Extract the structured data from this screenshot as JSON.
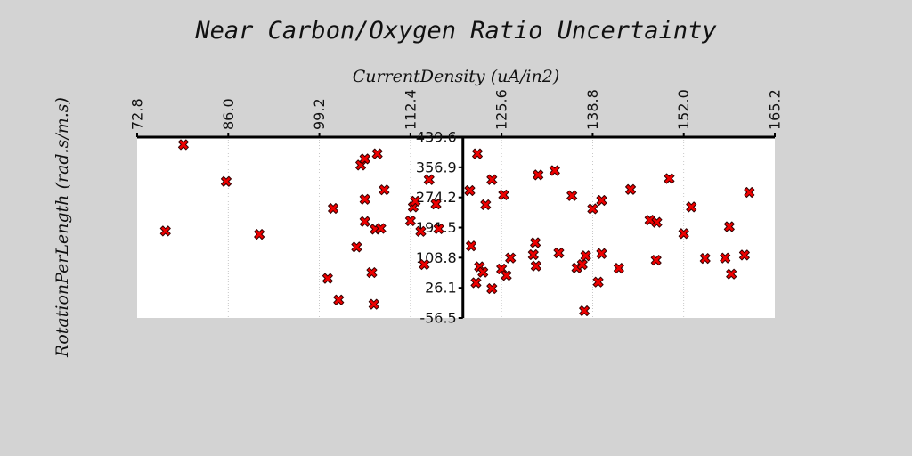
{
  "chart_data": {
    "type": "scatter",
    "title": "Near Carbon/Oxygen Ratio Uncertainty",
    "xlabel": "CurrentDensity (uA/in2)",
    "ylabel": "RotationPerLength (rad.s/m.s)",
    "xlim": [
      72.8,
      165.2
    ],
    "ylim": [
      -56.5,
      439.6
    ],
    "x_ticks": [
      "72.8",
      "86.0",
      "99.2",
      "112.4",
      "125.6",
      "138.8",
      "152.0",
      "165.2"
    ],
    "y_ticks": [
      "-56.5",
      "26.1",
      "108.8",
      "191.5",
      "274.2",
      "356.9",
      "439.6"
    ],
    "x_axis_position": "top",
    "y_axis_crosses_x_at": 120.0,
    "grid": "vertical dotted",
    "marker": "x",
    "colors": {
      "marker_fill": "#ee0000",
      "marker_edge": "#330000",
      "background": "#d3d3d3",
      "plot_bg": "#ffffff"
    },
    "points": [
      {
        "x": 79.5,
        "y": 419
      },
      {
        "x": 85.7,
        "y": 318
      },
      {
        "x": 76.9,
        "y": 182
      },
      {
        "x": 90.5,
        "y": 173
      },
      {
        "x": 100.4,
        "y": 52
      },
      {
        "x": 101.2,
        "y": 244
      },
      {
        "x": 102.0,
        "y": -7
      },
      {
        "x": 104.6,
        "y": 138
      },
      {
        "x": 105.2,
        "y": 363
      },
      {
        "x": 105.8,
        "y": 380
      },
      {
        "x": 105.8,
        "y": 269
      },
      {
        "x": 105.8,
        "y": 208
      },
      {
        "x": 106.8,
        "y": 68
      },
      {
        "x": 107.1,
        "y": -19
      },
      {
        "x": 107.3,
        "y": 187
      },
      {
        "x": 107.6,
        "y": 394
      },
      {
        "x": 108.1,
        "y": 189
      },
      {
        "x": 108.6,
        "y": 295
      },
      {
        "x": 112.4,
        "y": 210
      },
      {
        "x": 112.8,
        "y": 248
      },
      {
        "x": 113.1,
        "y": 264
      },
      {
        "x": 113.9,
        "y": 181
      },
      {
        "x": 114.4,
        "y": 90
      },
      {
        "x": 115.1,
        "y": 323
      },
      {
        "x": 116.1,
        "y": 256
      },
      {
        "x": 116.5,
        "y": 188
      },
      {
        "x": 121.0,
        "y": 293
      },
      {
        "x": 121.2,
        "y": 141
      },
      {
        "x": 121.9,
        "y": 40
      },
      {
        "x": 122.1,
        "y": 394
      },
      {
        "x": 122.4,
        "y": 84
      },
      {
        "x": 122.9,
        "y": 69
      },
      {
        "x": 123.3,
        "y": 254
      },
      {
        "x": 124.2,
        "y": 24
      },
      {
        "x": 124.2,
        "y": 323
      },
      {
        "x": 125.6,
        "y": 78
      },
      {
        "x": 125.9,
        "y": 281
      },
      {
        "x": 126.3,
        "y": 60
      },
      {
        "x": 126.9,
        "y": 108
      },
      {
        "x": 130.2,
        "y": 117
      },
      {
        "x": 130.5,
        "y": 150
      },
      {
        "x": 130.6,
        "y": 86
      },
      {
        "x": 130.9,
        "y": 336
      },
      {
        "x": 133.3,
        "y": 348
      },
      {
        "x": 133.9,
        "y": 122
      },
      {
        "x": 135.8,
        "y": 279
      },
      {
        "x": 136.5,
        "y": 81
      },
      {
        "x": 137.3,
        "y": 90
      },
      {
        "x": 137.6,
        "y": -37
      },
      {
        "x": 137.8,
        "y": 114
      },
      {
        "x": 138.8,
        "y": 243
      },
      {
        "x": 139.6,
        "y": 42
      },
      {
        "x": 140.1,
        "y": 266
      },
      {
        "x": 140.1,
        "y": 120
      },
      {
        "x": 142.6,
        "y": 80
      },
      {
        "x": 144.3,
        "y": 296
      },
      {
        "x": 147.1,
        "y": 212
      },
      {
        "x": 148.0,
        "y": 102
      },
      {
        "x": 148.1,
        "y": 206
      },
      {
        "x": 149.9,
        "y": 326
      },
      {
        "x": 152.0,
        "y": 175
      },
      {
        "x": 153.1,
        "y": 248
      },
      {
        "x": 155.1,
        "y": 107
      },
      {
        "x": 158.0,
        "y": 108
      },
      {
        "x": 158.6,
        "y": 194
      },
      {
        "x": 158.9,
        "y": 64
      },
      {
        "x": 160.8,
        "y": 116
      },
      {
        "x": 161.5,
        "y": 288
      }
    ]
  }
}
